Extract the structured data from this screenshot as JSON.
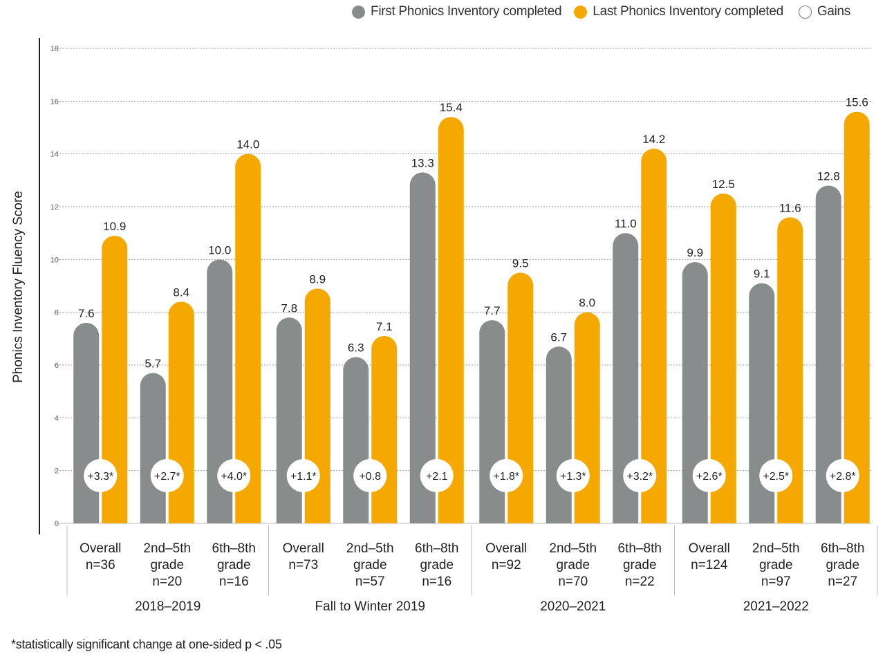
{
  "legend": {
    "first": "First Phonics Inventory completed",
    "last": "Last Phonics Inventory completed",
    "gains": "Gains"
  },
  "footnote": "*statistically significant change at one-sided p < .05",
  "colors": {
    "first": "#898c8d",
    "last": "#f4a800",
    "gains_fill": "#ffffff",
    "gridline": "#9a9a9a",
    "axis": "#222222",
    "text": "#222222"
  },
  "chart_data": {
    "type": "bar",
    "ylabel": "Phonics Inventory Fluency Score",
    "ylim": [
      0,
      18
    ],
    "yticks": [
      0,
      2,
      4,
      6,
      8,
      10,
      12,
      14,
      16,
      18
    ],
    "grid": true,
    "legend_position": "top-right",
    "groups": [
      {
        "name": "2018–2019",
        "categories": [
          {
            "label": [
              "Overall",
              "n=36"
            ],
            "first": 7.6,
            "last": 10.9,
            "gain": "+3.3*"
          },
          {
            "label": [
              "2nd–5th",
              "grade",
              "n=20"
            ],
            "first": 5.7,
            "last": 8.4,
            "gain": "+2.7*"
          },
          {
            "label": [
              "6th–8th",
              "grade",
              "n=16"
            ],
            "first": 10.0,
            "last": 14.0,
            "gain": "+4.0*"
          }
        ]
      },
      {
        "name": "Fall to Winter 2019",
        "categories": [
          {
            "label": [
              "Overall",
              "n=73"
            ],
            "first": 7.8,
            "last": 8.9,
            "gain": "+1.1*"
          },
          {
            "label": [
              "2nd–5th",
              "grade",
              "n=57"
            ],
            "first": 6.3,
            "last": 7.1,
            "gain": "+0.8"
          },
          {
            "label": [
              "6th–8th",
              "grade",
              "n=16"
            ],
            "first": 13.3,
            "last": 15.4,
            "gain": "+2.1"
          }
        ]
      },
      {
        "name": "2020–2021",
        "categories": [
          {
            "label": [
              "Overall",
              "n=92"
            ],
            "first": 7.7,
            "last": 9.5,
            "gain": "+1.8*"
          },
          {
            "label": [
              "2nd–5th",
              "grade",
              "n=70"
            ],
            "first": 6.7,
            "last": 8.0,
            "gain": "+1.3*"
          },
          {
            "label": [
              "6th–8th",
              "grade",
              "n=22"
            ],
            "first": 11.0,
            "last": 14.2,
            "gain": "+3.2*"
          }
        ]
      },
      {
        "name": "2021–2022",
        "categories": [
          {
            "label": [
              "Overall",
              "n=124"
            ],
            "first": 9.9,
            "last": 12.5,
            "gain": "+2.6*"
          },
          {
            "label": [
              "2nd–5th",
              "grade",
              "n=97"
            ],
            "first": 9.1,
            "last": 11.6,
            "gain": "+2.5*"
          },
          {
            "label": [
              "6th–8th",
              "grade",
              "n=27"
            ],
            "first": 12.8,
            "last": 15.6,
            "gain": "+2.8*"
          }
        ]
      }
    ]
  }
}
